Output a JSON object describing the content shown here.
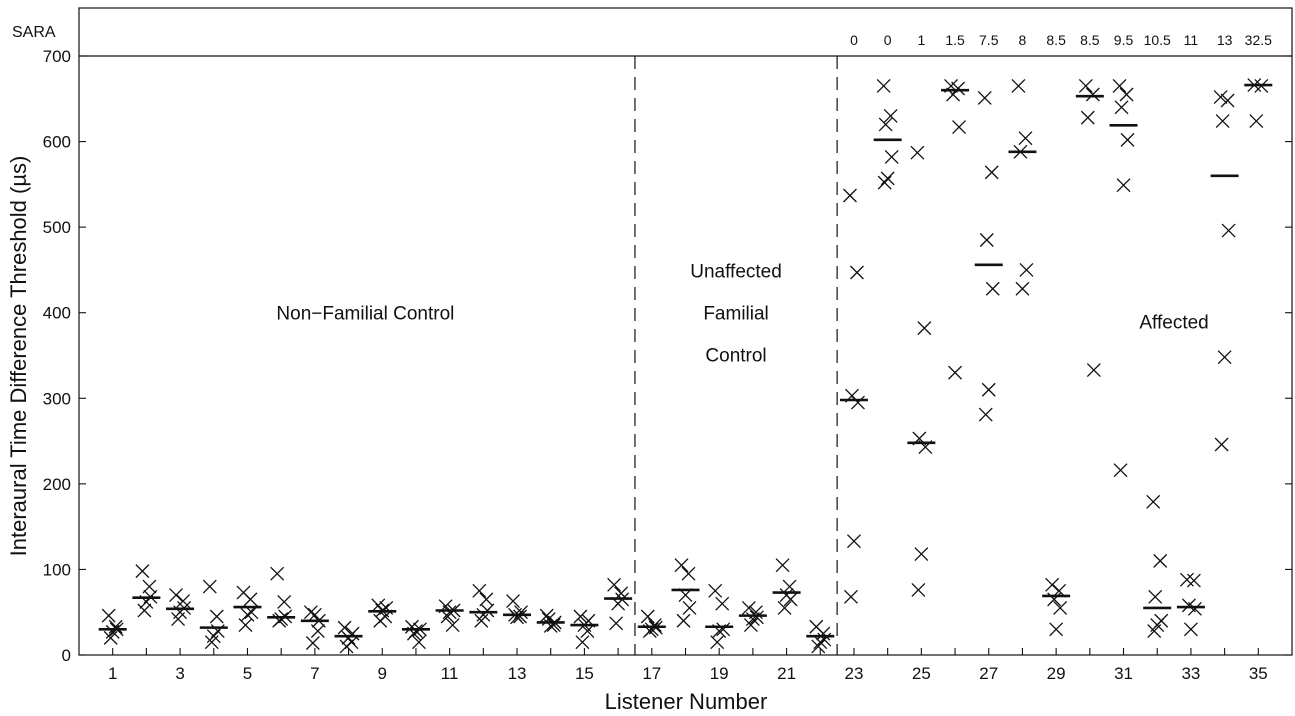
{
  "chart_data": {
    "type": "scatter",
    "xlabel": "Listener Number",
    "ylabel": "Interaural Time Difference Threshold (µs)",
    "ylim": [
      0,
      700
    ],
    "xlim": [
      0,
      36
    ],
    "yticks": [
      0,
      100,
      200,
      300,
      400,
      500,
      600,
      700
    ],
    "xticks": [
      1,
      3,
      5,
      7,
      9,
      11,
      13,
      15,
      17,
      19,
      21,
      23,
      25,
      27,
      29,
      31,
      33,
      35
    ],
    "marker": "x",
    "mean_marker": "horizontal-bar",
    "group_dividers": [
      16.5,
      22.5
    ],
    "groups": [
      {
        "label_lines": [
          "Non−Familial Control"
        ],
        "x": 8.5,
        "y": 400
      },
      {
        "label_lines": [
          "Unaffected",
          "Familial",
          "Control"
        ],
        "x": 19.5,
        "y": 400
      },
      {
        "label_lines": [
          "Affected"
        ],
        "x": 32.5,
        "y": 390
      }
    ],
    "sara": {
      "label": "SARA",
      "values": [
        {
          "listener": 23,
          "score": "0"
        },
        {
          "listener": 24,
          "score": "0"
        },
        {
          "listener": 25,
          "score": "1"
        },
        {
          "listener": 26,
          "score": "1.5"
        },
        {
          "listener": 27,
          "score": "7.5"
        },
        {
          "listener": 28,
          "score": "8"
        },
        {
          "listener": 29,
          "score": "8.5"
        },
        {
          "listener": 30,
          "score": "8.5"
        },
        {
          "listener": 31,
          "score": "9.5"
        },
        {
          "listener": 32,
          "score": "10.5"
        },
        {
          "listener": 33,
          "score": "11"
        },
        {
          "listener": 34,
          "score": "13"
        },
        {
          "listener": 35,
          "score": "32.5"
        }
      ]
    },
    "listeners": [
      {
        "listener": 1,
        "mean": 30,
        "thresholds": [
          46,
          33,
          20,
          30,
          27
        ]
      },
      {
        "listener": 2,
        "mean": 67,
        "thresholds": [
          98,
          80,
          52,
          68,
          62
        ]
      },
      {
        "listener": 3,
        "mean": 54,
        "thresholds": [
          70,
          63,
          42,
          55,
          50
        ]
      },
      {
        "listener": 4,
        "mean": 32,
        "thresholds": [
          80,
          45,
          15,
          28,
          22
        ]
      },
      {
        "listener": 5,
        "mean": 56,
        "thresholds": [
          73,
          65,
          35,
          50,
          47
        ]
      },
      {
        "listener": 6,
        "mean": 44,
        "thresholds": [
          95,
          62,
          40,
          45,
          42
        ]
      },
      {
        "listener": 7,
        "mean": 40,
        "thresholds": [
          50,
          28,
          14,
          40,
          47
        ]
      },
      {
        "listener": 8,
        "mean": 22,
        "thresholds": [
          32,
          15,
          10,
          25,
          20
        ]
      },
      {
        "listener": 9,
        "mean": 51,
        "thresholds": [
          58,
          45,
          40,
          55,
          52
        ]
      },
      {
        "listener": 10,
        "mean": 30,
        "thresholds": [
          33,
          15,
          25,
          30,
          28
        ]
      },
      {
        "listener": 11,
        "mean": 52,
        "thresholds": [
          57,
          35,
          45,
          52,
          50
        ]
      },
      {
        "listener": 12,
        "mean": 50,
        "thresholds": [
          75,
          65,
          40,
          52,
          47
        ]
      },
      {
        "listener": 13,
        "mean": 47,
        "thresholds": [
          63,
          45,
          47,
          50,
          44
        ]
      },
      {
        "listener": 14,
        "mean": 38,
        "thresholds": [
          46,
          35,
          42,
          38,
          34
        ]
      },
      {
        "listener": 15,
        "mean": 35,
        "thresholds": [
          45,
          28,
          15,
          40,
          35
        ]
      },
      {
        "listener": 16,
        "mean": 66,
        "thresholds": [
          82,
          72,
          37,
          65,
          60
        ]
      },
      {
        "listener": 17,
        "mean": 33,
        "thresholds": [
          45,
          35,
          28,
          32,
          30
        ]
      },
      {
        "listener": 18,
        "mean": 76,
        "thresholds": [
          105,
          95,
          40,
          55,
          70
        ]
      },
      {
        "listener": 19,
        "mean": 33,
        "thresholds": [
          75,
          60,
          15,
          30,
          28
        ]
      },
      {
        "listener": 20,
        "mean": 46,
        "thresholds": [
          55,
          50,
          35,
          44,
          42
        ]
      },
      {
        "listener": 21,
        "mean": 73,
        "thresholds": [
          105,
          80,
          55,
          65,
          70
        ]
      },
      {
        "listener": 22,
        "mean": 22,
        "thresholds": [
          33,
          25,
          10,
          18,
          15
        ]
      },
      {
        "listener": 23,
        "mean": 298,
        "thresholds": [
          537,
          447,
          303,
          295,
          133,
          68
        ]
      },
      {
        "listener": 24,
        "mean": 602,
        "thresholds": [
          665,
          630,
          620,
          582,
          557,
          552
        ]
      },
      {
        "listener": 25,
        "mean": 248,
        "thresholds": [
          587,
          382,
          253,
          243,
          118,
          76
        ]
      },
      {
        "listener": 26,
        "mean": 660,
        "thresholds": [
          665,
          662,
          655,
          617,
          330
        ]
      },
      {
        "listener": 27,
        "mean": 456,
        "thresholds": [
          651,
          564,
          485,
          428,
          310,
          281
        ]
      },
      {
        "listener": 28,
        "mean": 588,
        "thresholds": [
          665,
          604,
          588,
          450,
          428
        ]
      },
      {
        "listener": 29,
        "mean": 69,
        "thresholds": [
          82,
          75,
          65,
          55,
          30
        ]
      },
      {
        "listener": 30,
        "mean": 653,
        "thresholds": [
          665,
          655,
          628,
          333
        ]
      },
      {
        "listener": 31,
        "mean": 619,
        "thresholds": [
          665,
          655,
          640,
          602,
          549,
          216
        ]
      },
      {
        "listener": 32,
        "mean": 55,
        "thresholds": [
          179,
          110,
          68,
          40,
          35,
          28
        ]
      },
      {
        "listener": 33,
        "mean": 56,
        "thresholds": [
          88,
          87,
          58,
          54,
          30
        ]
      },
      {
        "listener": 34,
        "mean": 560,
        "thresholds": [
          652,
          648,
          624,
          496,
          348,
          246
        ]
      },
      {
        "listener": 35,
        "mean": 666,
        "thresholds": [
          666,
          665,
          624
        ]
      }
    ]
  }
}
